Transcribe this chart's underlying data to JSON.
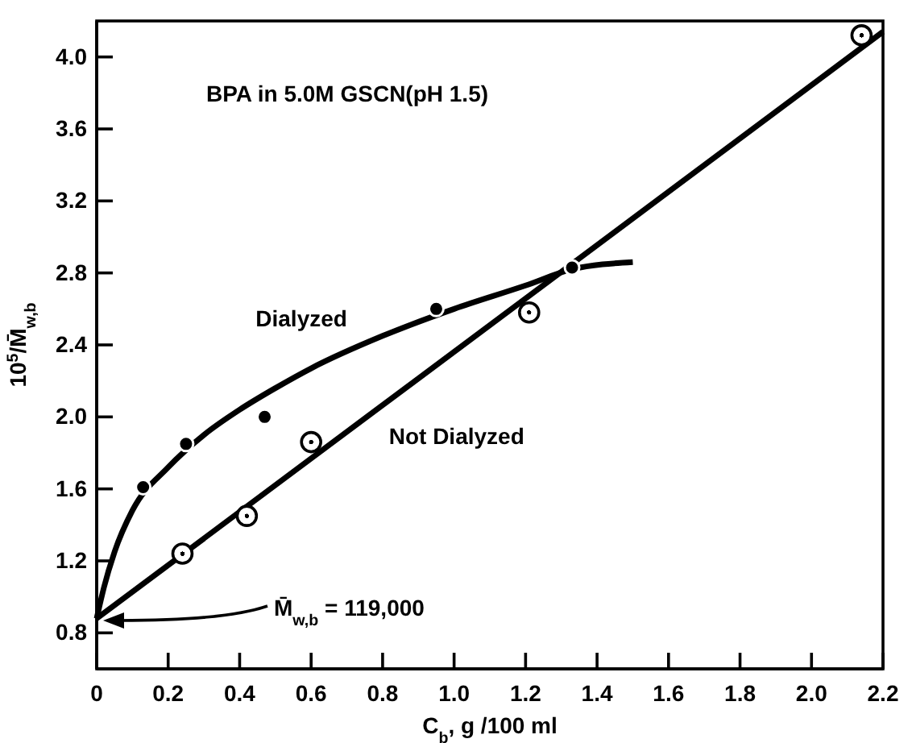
{
  "chart_data": {
    "type": "scatter",
    "xlabel": "C$_{b}$, g /100 ml",
    "ylabel": "10$^{5}$/M̄$_{w,b}$",
    "annotations": [
      "BPA in 5.0M GSCN(pH 1.5)",
      "M̄$_{w,b}$ = 119,000"
    ],
    "xlim": [
      0,
      2.2
    ],
    "ylim": [
      0.6,
      4.2
    ],
    "xticks": [
      0,
      0.2,
      0.4,
      0.6,
      0.8,
      {
        "value": 1,
        "label": "1.0"
      },
      1.2,
      1.4,
      1.6,
      1.8,
      {
        "value": 2,
        "label": "2.0"
      },
      2.2
    ],
    "yticks": [
      0.8,
      1.2,
      1.6,
      {
        "value": 2,
        "label": "2.0"
      },
      2.4,
      2.8,
      3.2,
      3.6,
      {
        "value": 4,
        "label": "4.0"
      }
    ],
    "grid": false,
    "legend": false,
    "series": [
      {
        "marker": "circle",
        "color": "#000000",
        "x": [
          0.13,
          0.25,
          0.47,
          0.95,
          1.33
        ],
        "values": [
          1.61,
          1.85,
          2.0,
          2.6,
          2.83
        ]
      },
      {
        "marker": "circle",
        "color": "#000000",
        "x": [
          0.24,
          0.42,
          0.6,
          1.21,
          2.14
        ],
        "values": [
          1.24,
          1.45,
          1.86,
          2.58,
          4.12
        ]
      },
      {
        "type": "line",
        "name": "Dialyzed",
        "color": "#000000",
        "x": [
          0,
          0.02,
          0.05,
          0.1,
          0.2,
          0.3,
          0.4,
          0.5,
          0.6,
          0.8,
          1.0,
          1.2,
          1.33,
          1.5
        ],
        "values": [
          0.88,
          1.05,
          1.25,
          1.48,
          1.72,
          1.9,
          2.04,
          2.16,
          2.27,
          2.45,
          2.6,
          2.73,
          2.82,
          2.86
        ]
      },
      {
        "type": "line",
        "name": "Not Dialyzed",
        "color": "#000000",
        "x": [
          0,
          2.2
        ],
        "values": [
          0.88,
          4.14
        ]
      }
    ]
  }
}
